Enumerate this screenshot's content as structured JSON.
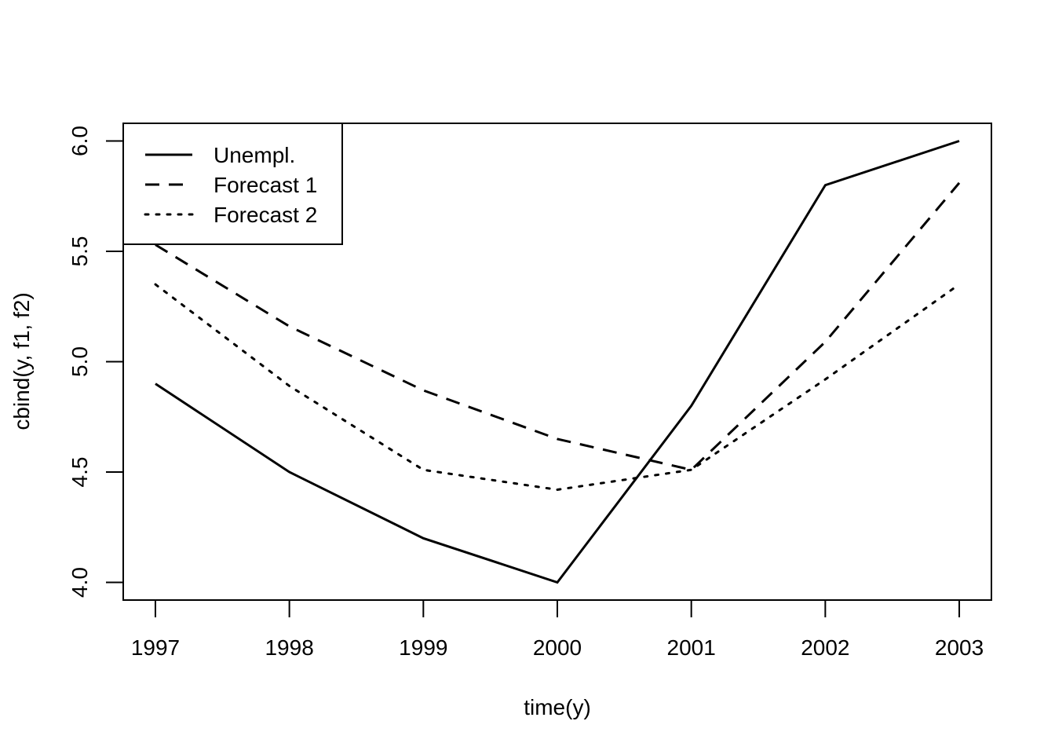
{
  "chart_data": {
    "type": "line",
    "title": "",
    "xlabel": "time(y)",
    "ylabel": "cbind(y, f1, f2)",
    "x": [
      1997,
      1998,
      1999,
      2000,
      2001,
      2002,
      2003
    ],
    "xticks": [
      "1997",
      "1998",
      "1999",
      "2000",
      "2001",
      "2002",
      "2003"
    ],
    "yticks": [
      "4.0",
      "4.5",
      "5.0",
      "5.5",
      "6.0"
    ],
    "ytick_values": [
      4.0,
      4.5,
      5.0,
      5.5,
      6.0
    ],
    "xlim": [
      1996.76,
      2003.24
    ],
    "ylim": [
      3.92,
      6.08
    ],
    "grid": false,
    "legend_position": "top-left",
    "series": [
      {
        "name": "Unempl.",
        "style": "solid",
        "values": [
          4.9,
          4.5,
          4.2,
          4.0,
          4.8,
          5.8,
          6.0
        ]
      },
      {
        "name": "Forecast 1",
        "style": "dashed",
        "values": [
          5.53,
          5.16,
          4.87,
          4.65,
          4.51,
          5.09,
          5.81
        ]
      },
      {
        "name": "Forecast 2",
        "style": "dotted",
        "values": [
          5.35,
          4.89,
          4.51,
          4.42,
          4.51,
          4.92,
          5.35
        ]
      }
    ],
    "colors": {
      "line": "#000000",
      "background": "#ffffff"
    }
  }
}
